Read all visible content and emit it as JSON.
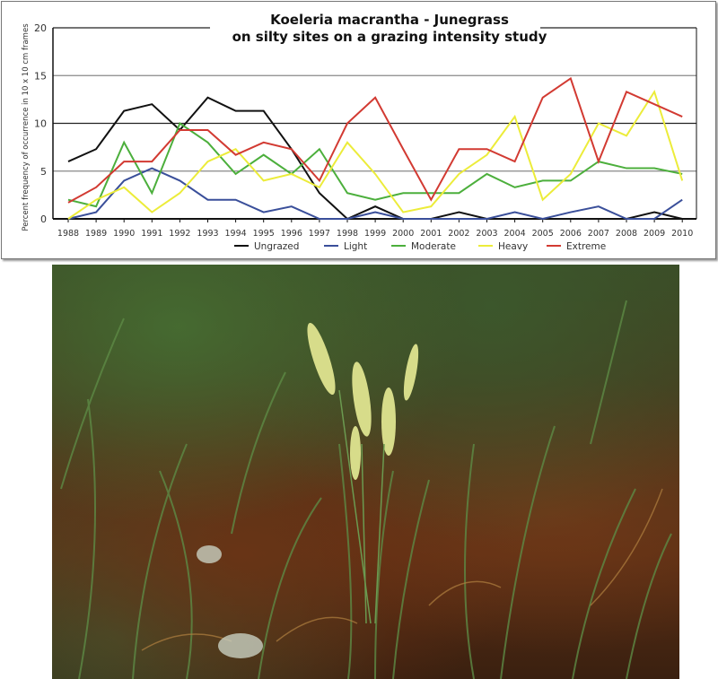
{
  "chart_data": {
    "type": "line",
    "title": "Koeleria macrantha  -  Junegrass",
    "subtitle": "on silty sites on a grazing intensity study",
    "xlabel": "",
    "ylabel": "Percent frequency of occurrence in 10 x 10 cm frames",
    "ylim": [
      0,
      20
    ],
    "yticks": [
      0,
      5,
      10,
      15,
      20
    ],
    "grid": true,
    "legend_position": "bottom",
    "x": [
      1988,
      1989,
      1990,
      1991,
      1992,
      1993,
      1994,
      1995,
      1996,
      1997,
      1998,
      1999,
      2000,
      2001,
      2002,
      2003,
      2004,
      2005,
      2006,
      2007,
      2008,
      2009,
      2010
    ],
    "series": [
      {
        "name": "Ungrazed",
        "color": "#111111",
        "values": [
          6,
          7.3,
          11.3,
          12,
          9.3,
          12.7,
          11.3,
          11.3,
          7.3,
          2.7,
          0,
          1.3,
          0,
          0,
          0.7,
          0,
          0,
          0,
          0,
          0,
          0,
          0.7,
          0
        ]
      },
      {
        "name": "Light",
        "color": "#3a4f9a",
        "values": [
          0,
          0.7,
          4,
          5.3,
          4,
          2,
          2,
          0.7,
          1.3,
          0,
          0,
          0.7,
          0,
          0,
          0,
          0,
          0.7,
          0,
          0.7,
          1.3,
          0,
          0,
          2
        ]
      },
      {
        "name": "Moderate",
        "color": "#4caf3c",
        "values": [
          2,
          1.3,
          8,
          2.7,
          10,
          8,
          4.7,
          6.7,
          4.7,
          7.3,
          2.7,
          2,
          2.7,
          2.7,
          2.7,
          4.7,
          3.3,
          4,
          4,
          6,
          5.3,
          5.3,
          4.7
        ]
      },
      {
        "name": "Heavy",
        "color": "#ecec3a",
        "values": [
          0,
          2,
          3.3,
          0.7,
          2.7,
          6,
          7.3,
          4,
          4.7,
          3.3,
          8,
          4.7,
          0.7,
          1.3,
          4.7,
          6.7,
          10.7,
          2,
          4.7,
          10,
          8.7,
          13.3,
          4
        ]
      },
      {
        "name": "Extreme",
        "color": "#d23a32",
        "values": [
          1.7,
          3.3,
          6,
          6,
          9.3,
          9.3,
          6.7,
          8,
          7.3,
          4,
          10,
          12.7,
          7.3,
          2,
          7.3,
          7.3,
          6,
          12.7,
          14.7,
          6,
          13.3,
          12,
          10.7
        ]
      }
    ]
  }
}
